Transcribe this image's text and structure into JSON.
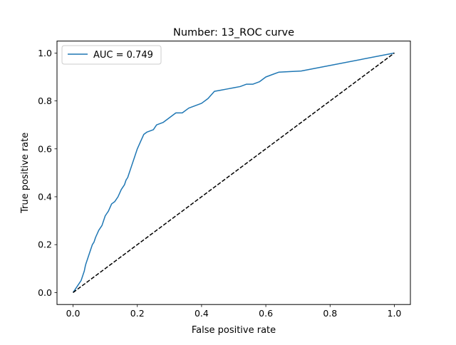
{
  "chart_data": {
    "type": "line",
    "title": "Number: 13_ROC curve",
    "xlabel": "False positive rate",
    "ylabel": "True positive rate",
    "xlim": [
      -0.05,
      1.05
    ],
    "ylim": [
      -0.05,
      1.05
    ],
    "xticks": [
      0.0,
      0.2,
      0.4,
      0.6,
      0.8,
      1.0
    ],
    "yticks": [
      0.0,
      0.2,
      0.4,
      0.6,
      0.8,
      1.0
    ],
    "xtick_labels": [
      "0.0",
      "0.2",
      "0.4",
      "0.6",
      "0.8",
      "1.0"
    ],
    "ytick_labels": [
      "0.0",
      "0.2",
      "0.4",
      "0.6",
      "0.8",
      "1.0"
    ],
    "grid": false,
    "legend": {
      "placement": "top-left",
      "entries": [
        "AUC = 0.749"
      ]
    },
    "series": [
      {
        "name": "AUC = 0.749",
        "style": "solid",
        "color": "#1f77b4",
        "x": [
          0.0,
          0.01,
          0.015,
          0.02,
          0.025,
          0.03,
          0.035,
          0.038,
          0.04,
          0.045,
          0.05,
          0.055,
          0.06,
          0.065,
          0.07,
          0.08,
          0.09,
          0.095,
          0.1,
          0.105,
          0.11,
          0.12,
          0.13,
          0.14,
          0.15,
          0.16,
          0.165,
          0.17,
          0.175,
          0.18,
          0.19,
          0.2,
          0.21,
          0.22,
          0.23,
          0.25,
          0.26,
          0.28,
          0.3,
          0.32,
          0.34,
          0.36,
          0.38,
          0.4,
          0.42,
          0.44,
          0.46,
          0.48,
          0.5,
          0.52,
          0.54,
          0.56,
          0.58,
          0.6,
          0.62,
          0.64,
          0.71,
          1.0
        ],
        "y": [
          0.0,
          0.02,
          0.03,
          0.04,
          0.05,
          0.07,
          0.09,
          0.11,
          0.12,
          0.14,
          0.16,
          0.18,
          0.2,
          0.21,
          0.23,
          0.26,
          0.28,
          0.3,
          0.32,
          0.33,
          0.34,
          0.37,
          0.38,
          0.4,
          0.43,
          0.45,
          0.47,
          0.48,
          0.5,
          0.52,
          0.56,
          0.6,
          0.63,
          0.66,
          0.67,
          0.68,
          0.7,
          0.71,
          0.73,
          0.75,
          0.75,
          0.77,
          0.78,
          0.79,
          0.81,
          0.84,
          0.845,
          0.85,
          0.855,
          0.86,
          0.87,
          0.87,
          0.88,
          0.9,
          0.91,
          0.92,
          0.925,
          1.0
        ]
      },
      {
        "name": "",
        "style": "dashed",
        "color": "#000000",
        "x": [
          0.0,
          1.0
        ],
        "y": [
          0.0,
          1.0
        ]
      }
    ]
  }
}
